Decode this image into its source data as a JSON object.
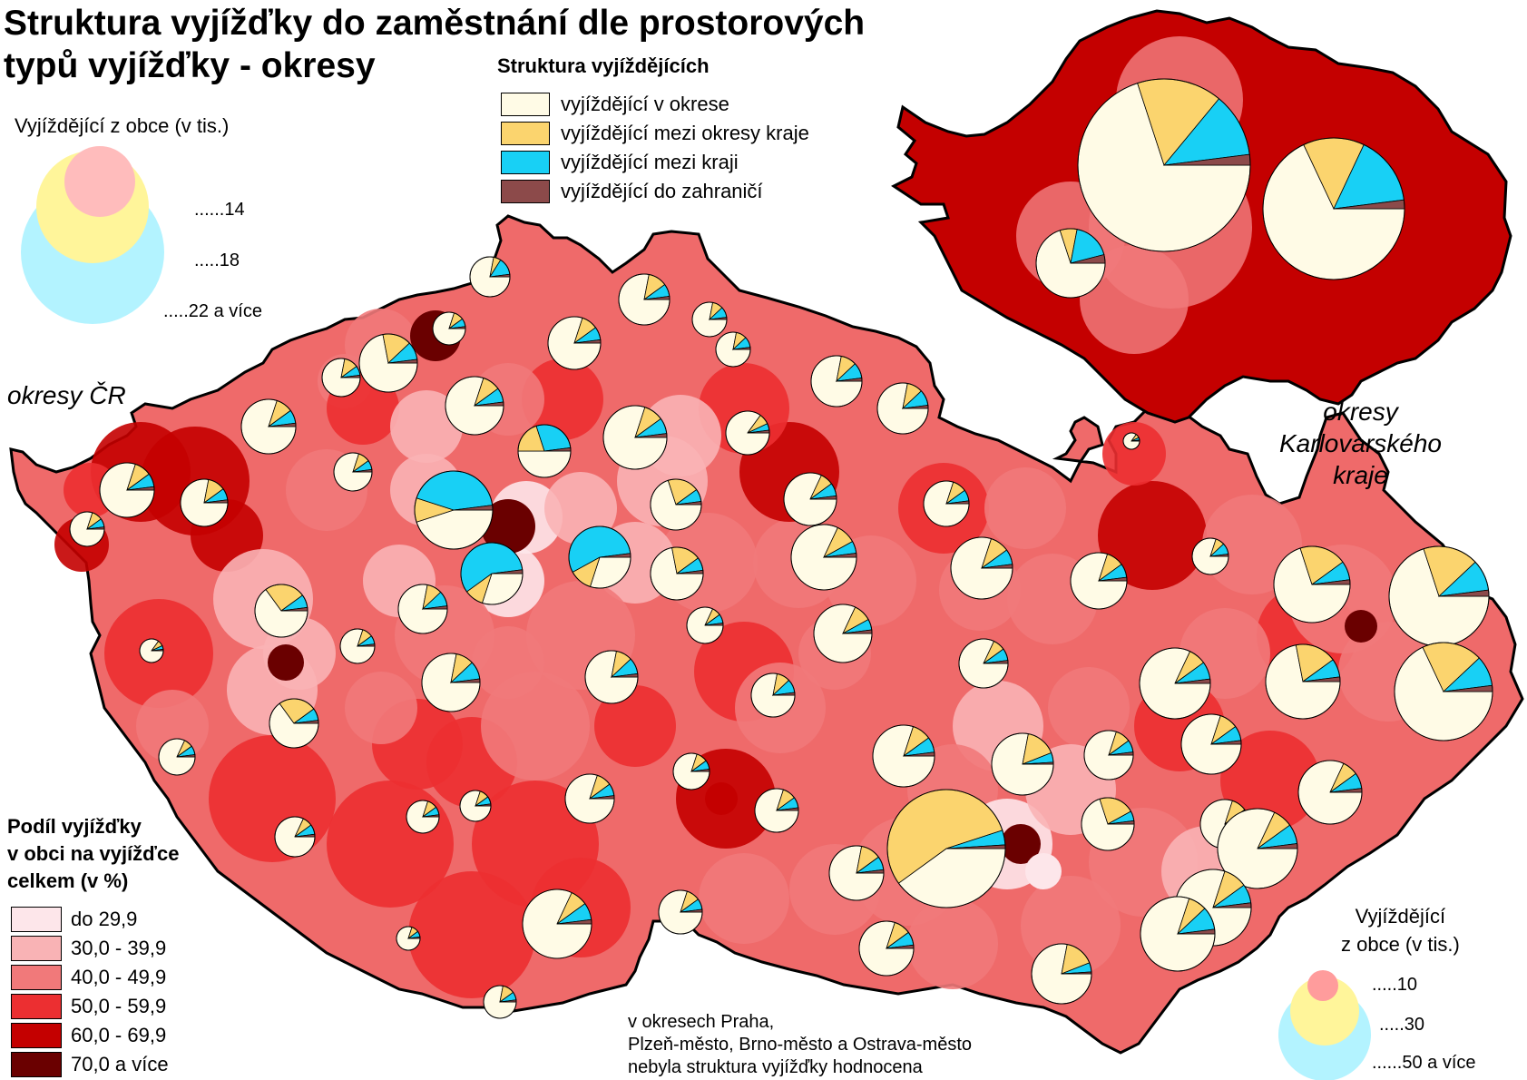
{
  "title_line1": "Struktura vyjížďky do zaměstnání dle prostorových",
  "title_line2": "typů vyjížďky - okresy",
  "map_label_cr": "okresy ČR",
  "map_label_kv": [
    "okresy",
    "Karlovarského",
    "kraje"
  ],
  "structure_legend": {
    "title": "Struktura vyjíždějících",
    "items": [
      {
        "label": "vyjíždějící v okrese",
        "color": "#fffbe6"
      },
      {
        "label": "vyjíždějící mezi okresy kraje",
        "color": "#fbd46e"
      },
      {
        "label": "vyjíždějící mezi kraji",
        "color": "#18d0f5"
      },
      {
        "label": "vyjíždějící do zahraničí",
        "color": "#8c4a4a"
      }
    ]
  },
  "size_legend_kv": {
    "title": "Vyjíždějící z obce (v tis.)",
    "labels": [
      "......14",
      ".....18",
      ".....22 a více"
    ],
    "colors": [
      "#b3f3ff",
      "#fff59a",
      "#ffbcbc"
    ]
  },
  "size_legend_cr": {
    "title_lines": [
      "Vyjíždějící",
      "z obce (v tis.)"
    ],
    "labels": [
      ".....10",
      ".....30",
      "......50 a více"
    ],
    "colors": [
      "#b3f3ff",
      "#fff59a",
      "#ff9c9c"
    ]
  },
  "share_legend": {
    "title_lines": [
      "Podíl vyjížďky",
      "v obci na vyjížďce",
      "celkem (v %)"
    ],
    "classes": [
      {
        "label": "do 29,9",
        "color": "#fde6ea"
      },
      {
        "label": "30,0 - 39,9",
        "color": "#f9b3b5"
      },
      {
        "label": "40,0 - 49,9",
        "color": "#f1797a"
      },
      {
        "label": "50,0 - 59,9",
        "color": "#ec2f31"
      },
      {
        "label": "60,0 - 69,9",
        "color": "#c40000"
      },
      {
        "label": "70,0 a více",
        "color": "#6a0000"
      }
    ]
  },
  "note_lines": [
    "v okresech Praha,",
    "Plzeň-město, Brno-město a Ostrava-město",
    "nebyla struktura vyjížďky hodnocena"
  ]
}
